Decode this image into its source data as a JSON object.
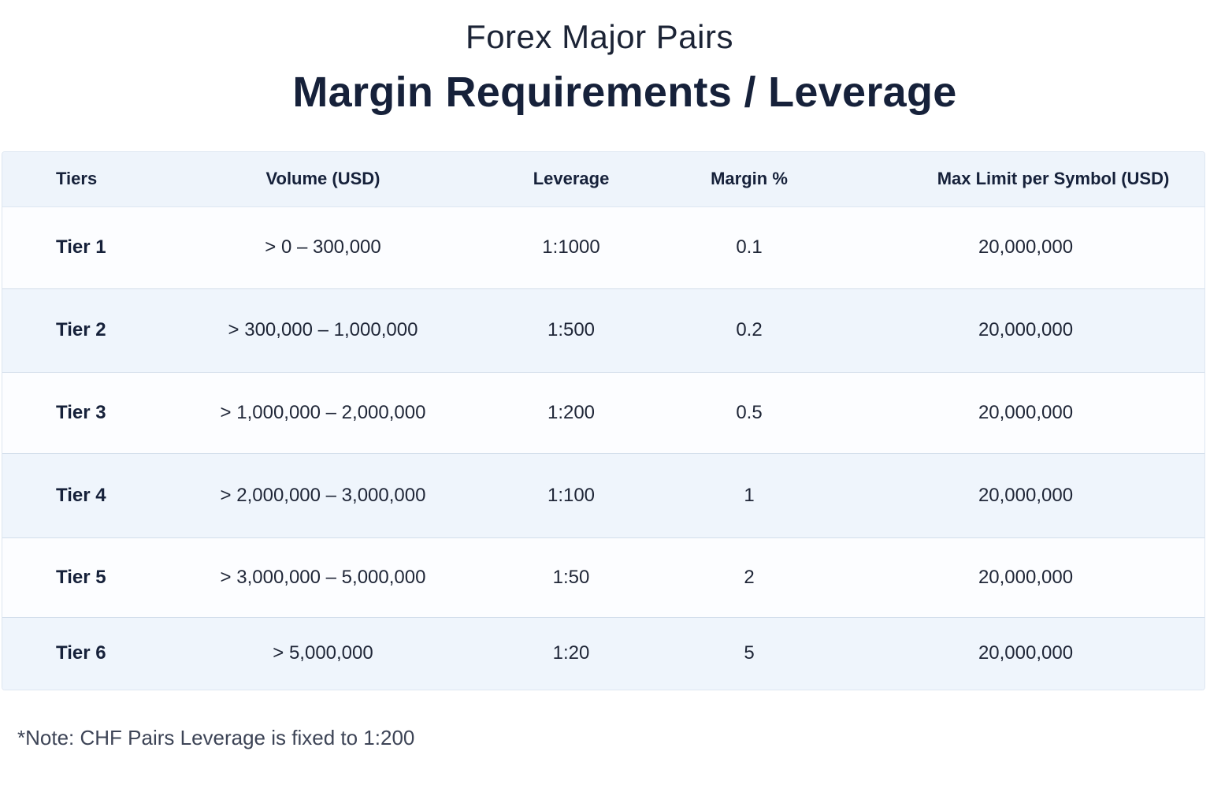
{
  "header": {
    "subtitle": "Forex Major Pairs",
    "title": "Margin Requirements / Leverage"
  },
  "table": {
    "columns": [
      "Tiers",
      "Volume (USD)",
      "Leverage",
      "Margin %",
      "Max Limit per Symbol (USD)"
    ],
    "rows": [
      {
        "tier": "Tier 1",
        "volume": "> 0 – 300,000",
        "leverage": "1:1000",
        "margin": "0.1",
        "max_limit": "20,000,000"
      },
      {
        "tier": "Tier 2",
        "volume": "> 300,000 – 1,000,000",
        "leverage": "1:500",
        "margin": "0.2",
        "max_limit": "20,000,000"
      },
      {
        "tier": "Tier 3",
        "volume": "> 1,000,000 – 2,000,000",
        "leverage": "1:200",
        "margin": "0.5",
        "max_limit": "20,000,000"
      },
      {
        "tier": "Tier 4",
        "volume": "> 2,000,000 – 3,000,000",
        "leverage": "1:100",
        "margin": "1",
        "max_limit": "20,000,000"
      },
      {
        "tier": "Tier 5",
        "volume": "> 3,000,000 – 5,000,000",
        "leverage": "1:50",
        "margin": "2",
        "max_limit": "20,000,000"
      },
      {
        "tier": "Tier 6",
        "volume": "> 5,000,000",
        "leverage": "1:20",
        "margin": "5",
        "max_limit": "20,000,000"
      }
    ]
  },
  "footer": {
    "note": "*Note: CHF Pairs Leverage is fixed to 1:200"
  }
}
